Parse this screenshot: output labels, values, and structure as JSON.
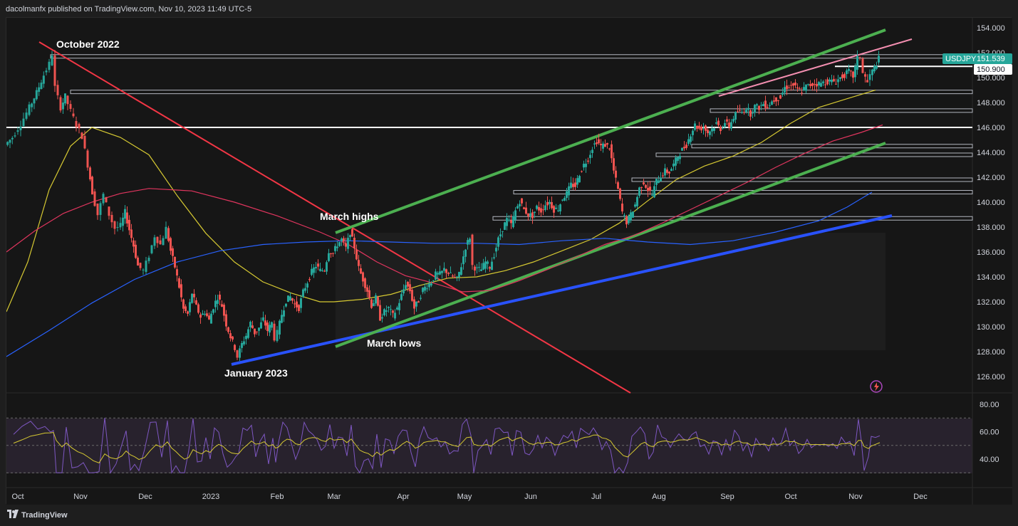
{
  "header": {
    "text": "dacolmanfx published on TradingView.com, Nov 10, 2023 11:49 UTC-5"
  },
  "footer": {
    "logo_text": "TradingView"
  },
  "colors": {
    "background": "#161616",
    "up": "#26a69a",
    "down": "#ef5350",
    "ma_short": "#d6c932",
    "ma_mid": "#e0355e",
    "ma_long": "#2962ff",
    "channel": "#4caf50",
    "downtrend": "#f23645",
    "uptrend": "#2952ff",
    "pink_line": "#f48fb1",
    "rsi": "#7e57c2",
    "rsi_signal": "#d6c932"
  },
  "chart_data": [
    {
      "type": "candlestick",
      "symbol": "USDJPY",
      "last_price_label": "151.539",
      "level_label": "150.900",
      "ylim": [
        125,
        154.5
      ],
      "y_ticks": [
        "154.000",
        "152.000",
        "150.000",
        "148.000",
        "146.000",
        "144.000",
        "142.000",
        "140.000",
        "138.000",
        "136.000",
        "134.000",
        "132.000",
        "130.000",
        "128.000",
        "126.000"
      ],
      "x_ticks": [
        "Oct",
        "Nov",
        "Dec",
        "2023",
        "Feb",
        "Mar",
        "Apr",
        "May",
        "Jun",
        "Jul",
        "Aug",
        "Sep",
        "Oct",
        "Nov",
        "Dec"
      ],
      "annotations": [
        "October 2022",
        "March highs",
        "March lows",
        "January 2023"
      ],
      "price_path": [
        [
          0,
          144.6
        ],
        [
          10,
          145.2
        ],
        [
          22,
          146.3
        ],
        [
          34,
          147.6
        ],
        [
          44,
          148.8
        ],
        [
          54,
          150.2
        ],
        [
          62,
          151.1
        ],
        [
          66,
          151.9
        ],
        [
          70,
          149.2
        ],
        [
          78,
          147.6
        ],
        [
          84,
          148.5
        ],
        [
          92,
          147.3
        ],
        [
          100,
          146.2
        ],
        [
          108,
          145.3
        ],
        [
          116,
          143.0
        ],
        [
          122,
          140.8
        ],
        [
          130,
          139.0
        ],
        [
          138,
          140.6
        ],
        [
          146,
          139.0
        ],
        [
          154,
          137.9
        ],
        [
          162,
          138.1
        ],
        [
          168,
          139.2
        ],
        [
          174,
          137.8
        ],
        [
          180,
          136.5
        ],
        [
          186,
          134.9
        ],
        [
          194,
          134.5
        ],
        [
          202,
          135.7
        ],
        [
          210,
          137.3
        ],
        [
          218,
          136.6
        ],
        [
          226,
          137.9
        ],
        [
          232,
          136.1
        ],
        [
          238,
          134.8
        ],
        [
          244,
          133.2
        ],
        [
          250,
          131.4
        ],
        [
          256,
          131.0
        ],
        [
          262,
          132.7
        ],
        [
          268,
          131.6
        ],
        [
          274,
          130.8
        ],
        [
          280,
          131.2
        ],
        [
          286,
          130.5
        ],
        [
          292,
          131.6
        ],
        [
          298,
          132.4
        ],
        [
          304,
          131.7
        ],
        [
          310,
          130.2
        ],
        [
          316,
          129.2
        ],
        [
          322,
          128.3
        ],
        [
          326,
          127.6
        ],
        [
          332,
          128.6
        ],
        [
          338,
          129.3
        ],
        [
          344,
          130.3
        ],
        [
          350,
          129.5
        ],
        [
          356,
          129.9
        ],
        [
          362,
          130.6
        ],
        [
          368,
          129.7
        ],
        [
          374,
          130.3
        ],
        [
          378,
          129.1
        ],
        [
          382,
          129.5
        ],
        [
          388,
          131.0
        ],
        [
          394,
          132.1
        ],
        [
          400,
          132.4
        ],
        [
          406,
          131.8
        ],
        [
          412,
          131.5
        ],
        [
          418,
          132.8
        ],
        [
          424,
          133.6
        ],
        [
          430,
          134.4
        ],
        [
          436,
          134.9
        ],
        [
          442,
          134.5
        ],
        [
          448,
          134.6
        ],
        [
          454,
          136.1
        ],
        [
          460,
          135.9
        ],
        [
          466,
          136.6
        ],
        [
          472,
          137.0
        ],
        [
          478,
          136.3
        ],
        [
          484,
          137.6
        ],
        [
          490,
          136.4
        ],
        [
          496,
          134.7
        ],
        [
          502,
          133.8
        ],
        [
          508,
          132.9
        ],
        [
          514,
          131.7
        ],
        [
          520,
          132.3
        ],
        [
          526,
          130.7
        ],
        [
          532,
          131.2
        ],
        [
          538,
          131.5
        ],
        [
          544,
          130.9
        ],
        [
          550,
          131.5
        ],
        [
          556,
          132.5
        ],
        [
          562,
          133.5
        ],
        [
          568,
          132.9
        ],
        [
          574,
          131.5
        ],
        [
          580,
          132.1
        ],
        [
          586,
          133.0
        ],
        [
          592,
          133.3
        ],
        [
          598,
          133.6
        ],
        [
          604,
          134.2
        ],
        [
          610,
          134.2
        ],
        [
          616,
          134.6
        ],
        [
          622,
          134.3
        ],
        [
          628,
          134.0
        ],
        [
          634,
          133.8
        ],
        [
          640,
          134.9
        ],
        [
          646,
          136.4
        ],
        [
          652,
          137.2
        ],
        [
          656,
          134.9
        ],
        [
          662,
          134.6
        ],
        [
          668,
          134.6
        ],
        [
          674,
          135.2
        ],
        [
          680,
          134.8
        ],
        [
          686,
          135.8
        ],
        [
          692,
          137.0
        ],
        [
          698,
          137.9
        ],
        [
          704,
          138.6
        ],
        [
          710,
          138.2
        ],
        [
          716,
          139.3
        ],
        [
          722,
          140.1
        ],
        [
          728,
          139.4
        ],
        [
          734,
          139.0
        ],
        [
          740,
          138.9
        ],
        [
          746,
          139.6
        ],
        [
          752,
          139.3
        ],
        [
          758,
          139.8
        ],
        [
          764,
          140.0
        ],
        [
          770,
          139.4
        ],
        [
          776,
          139.5
        ],
        [
          782,
          140.3
        ],
        [
          788,
          140.7
        ],
        [
          794,
          141.4
        ],
        [
          800,
          141.3
        ],
        [
          806,
          142.3
        ],
        [
          812,
          143.0
        ],
        [
          818,
          143.5
        ],
        [
          824,
          144.4
        ],
        [
          830,
          144.9
        ],
        [
          836,
          144.5
        ],
        [
          842,
          144.6
        ],
        [
          848,
          144.4
        ],
        [
          854,
          142.5
        ],
        [
          860,
          141.0
        ],
        [
          866,
          139.2
        ],
        [
          872,
          138.4
        ],
        [
          878,
          139.0
        ],
        [
          884,
          139.8
        ],
        [
          890,
          141.1
        ],
        [
          896,
          141.6
        ],
        [
          902,
          141.0
        ],
        [
          908,
          140.6
        ],
        [
          914,
          141.7
        ],
        [
          920,
          142.1
        ],
        [
          926,
          142.5
        ],
        [
          932,
          142.4
        ],
        [
          938,
          143.0
        ],
        [
          944,
          143.7
        ],
        [
          950,
          144.2
        ],
        [
          956,
          144.6
        ],
        [
          962,
          145.5
        ],
        [
          968,
          146.2
        ],
        [
          974,
          145.9
        ],
        [
          980,
          146.0
        ],
        [
          986,
          145.6
        ],
        [
          992,
          145.9
        ],
        [
          998,
          146.3
        ],
        [
          1004,
          145.9
        ],
        [
          1010,
          146.4
        ],
        [
          1016,
          146.1
        ],
        [
          1022,
          146.8
        ],
        [
          1028,
          147.3
        ],
        [
          1034,
          147.2
        ],
        [
          1040,
          147.6
        ],
        [
          1046,
          147.1
        ],
        [
          1052,
          147.7
        ],
        [
          1058,
          147.6
        ],
        [
          1064,
          147.9
        ],
        [
          1070,
          147.7
        ],
        [
          1076,
          148.1
        ],
        [
          1082,
          148.3
        ],
        [
          1088,
          148.4
        ],
        [
          1094,
          149.2
        ],
        [
          1100,
          149.3
        ],
        [
          1106,
          149.4
        ],
        [
          1112,
          149.0
        ],
        [
          1118,
          148.9
        ],
        [
          1124,
          149.3
        ],
        [
          1130,
          149.4
        ],
        [
          1136,
          149.5
        ],
        [
          1142,
          149.5
        ],
        [
          1148,
          149.6
        ],
        [
          1154,
          149.7
        ],
        [
          1160,
          149.7
        ],
        [
          1166,
          149.7
        ],
        [
          1172,
          150.0
        ],
        [
          1178,
          150.2
        ],
        [
          1184,
          150.5
        ],
        [
          1190,
          150.1
        ],
        [
          1196,
          151.5
        ],
        [
          1200,
          151.7
        ],
        [
          1204,
          150.4
        ],
        [
          1210,
          149.6
        ],
        [
          1214,
          150.2
        ],
        [
          1220,
          150.8
        ],
        [
          1226,
          151.5
        ]
      ],
      "series": [
        {
          "name": "",
          "kind": "ma_short",
          "points": [
            [
              0,
              131.2
            ],
            [
              30,
              135.2
            ],
            [
              60,
              141.0
            ],
            [
              90,
              144.5
            ],
            [
              120,
              146.0
            ],
            [
              160,
              145.2
            ],
            [
              200,
              143.8
            ],
            [
              240,
              140.5
            ],
            [
              280,
              137.5
            ],
            [
              320,
              135.2
            ],
            [
              360,
              133.6
            ],
            [
              400,
              132.7
            ],
            [
              440,
              132.0
            ],
            [
              460,
              132.0
            ],
            [
              500,
              132.2
            ],
            [
              540,
              132.6
            ],
            [
              580,
              133.3
            ],
            [
              620,
              133.9
            ],
            [
              660,
              134.0
            ],
            [
              700,
              134.5
            ],
            [
              740,
              135.2
            ],
            [
              780,
              136.1
            ],
            [
              820,
              137.0
            ],
            [
              860,
              138.3
            ],
            [
              900,
              140.1
            ],
            [
              940,
              141.8
            ],
            [
              980,
              142.9
            ],
            [
              1020,
              143.7
            ],
            [
              1060,
              144.8
            ],
            [
              1100,
              146.3
            ],
            [
              1140,
              147.6
            ],
            [
              1180,
              148.3
            ],
            [
              1220,
              149.0
            ]
          ]
        },
        {
          "name": "",
          "kind": "ma_mid",
          "points": [
            [
              0,
              136.0
            ],
            [
              40,
              137.7
            ],
            [
              80,
              139.1
            ],
            [
              120,
              140.0
            ],
            [
              160,
              140.7
            ],
            [
              200,
              141.1
            ],
            [
              260,
              140.9
            ],
            [
              320,
              140.0
            ],
            [
              380,
              138.9
            ],
            [
              440,
              137.6
            ],
            [
              480,
              136.6
            ],
            [
              520,
              135.2
            ],
            [
              560,
              134.1
            ],
            [
              600,
              133.5
            ],
            [
              640,
              132.8
            ],
            [
              680,
              132.9
            ],
            [
              720,
              133.7
            ],
            [
              760,
              134.6
            ],
            [
              800,
              135.6
            ],
            [
              840,
              136.6
            ],
            [
              880,
              137.3
            ],
            [
              920,
              138.3
            ],
            [
              960,
              139.4
            ],
            [
              1000,
              140.5
            ],
            [
              1040,
              141.6
            ],
            [
              1080,
              142.8
            ],
            [
              1120,
              143.9
            ],
            [
              1160,
              144.9
            ],
            [
              1200,
              145.6
            ],
            [
              1230,
              146.2
            ]
          ]
        },
        {
          "name": "",
          "kind": "ma_long",
          "points": [
            [
              0,
              127.6
            ],
            [
              60,
              129.7
            ],
            [
              120,
              131.9
            ],
            [
              180,
              133.8
            ],
            [
              240,
              135.2
            ],
            [
              300,
              136.1
            ],
            [
              360,
              136.6
            ],
            [
              420,
              136.8
            ],
            [
              480,
              136.9
            ],
            [
              540,
              136.8
            ],
            [
              600,
              136.7
            ],
            [
              660,
              136.7
            ],
            [
              720,
              136.6
            ],
            [
              780,
              136.9
            ],
            [
              840,
              137.1
            ],
            [
              900,
              136.8
            ],
            [
              960,
              136.6
            ],
            [
              1020,
              136.9
            ],
            [
              1080,
              137.6
            ],
            [
              1140,
              138.5
            ],
            [
              1180,
              139.6
            ],
            [
              1215,
              140.8
            ]
          ]
        }
      ],
      "horizontal_levels": [
        151.7,
        148.85,
        147.35,
        146.0,
        144.5,
        143.8,
        141.8,
        140.8,
        138.7
      ],
      "rsi": {
        "ylim": [
          25,
          82
        ],
        "y_ticks": [
          "80.00",
          "60.00",
          "40.00"
        ],
        "guide_levels": [
          70,
          50,
          30
        ],
        "last_values": [
          62,
          59
        ]
      }
    }
  ]
}
